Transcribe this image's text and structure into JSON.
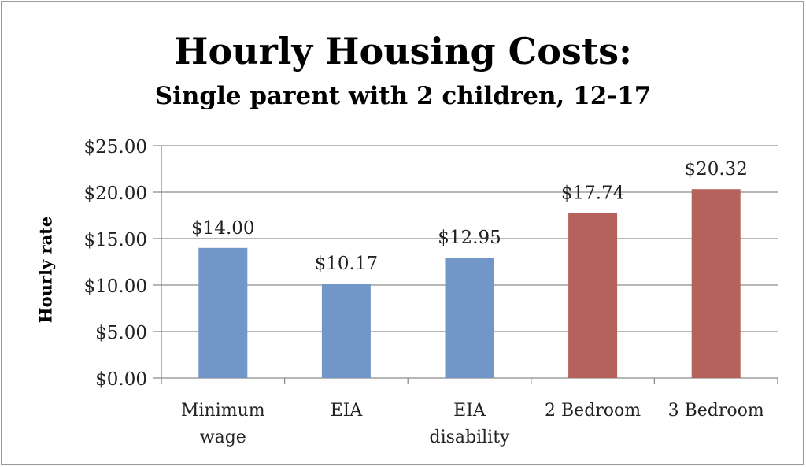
{
  "chart_data": {
    "type": "bar",
    "title": "Hourly Housing Costs:",
    "subtitle": "Single parent with 2 children, 12-17",
    "xlabel": "",
    "ylabel": "Hourly rate",
    "categories": [
      "Minimum wage",
      "EIA",
      "EIA disability",
      "2 Bedroom",
      "3 Bedroom"
    ],
    "category_lines": [
      [
        "Minimum",
        "wage"
      ],
      [
        "EIA"
      ],
      [
        "EIA",
        "disability"
      ],
      [
        "2 Bedroom"
      ],
      [
        "3 Bedroom"
      ]
    ],
    "values": [
      14.0,
      10.17,
      12.95,
      17.74,
      20.32
    ],
    "data_labels": [
      "$14.00",
      "$10.17",
      "$12.95",
      "$17.74",
      "$20.32"
    ],
    "bar_colors": [
      "#7396c9",
      "#7396c9",
      "#7396c9",
      "#b6625c",
      "#b6625c"
    ],
    "ylim": [
      0,
      25
    ],
    "yticks": [
      0,
      5,
      10,
      15,
      20,
      25
    ],
    "ytick_labels": [
      "$0.00",
      "$5.00",
      "$10.00",
      "$15.00",
      "$20.00",
      "$25.00"
    ],
    "grid": true,
    "legend": "none"
  }
}
